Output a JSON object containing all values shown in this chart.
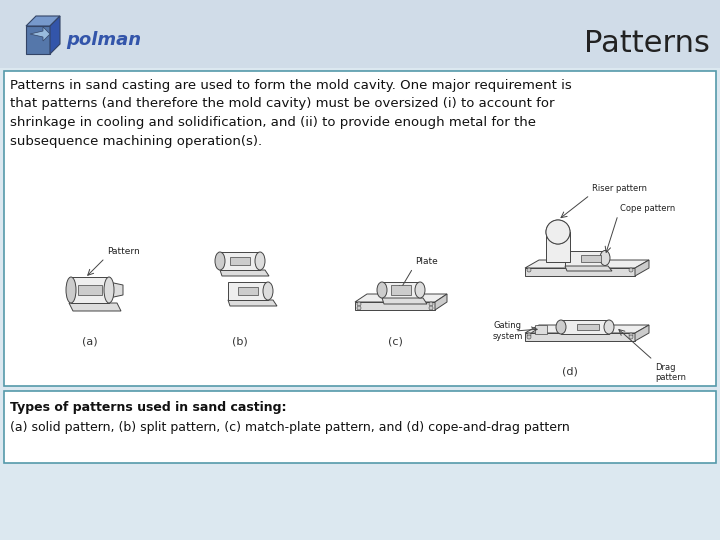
{
  "title": "Patterns",
  "header_bg_color": "#d0dce8",
  "slide_bg_color": "#dce8f0",
  "body_bg_color": "#ffffff",
  "title_color": "#222222",
  "title_fontsize": 22,
  "logo_text": "polman",
  "main_text": "Patterns in sand casting are used to form the mold cavity. One major requirement is\nthat patterns (and therefore the mold cavity) must be oversized (i) to account for\nshrinkage in cooling and solidification, and (ii) to provide enough metal for the\nsubsequence machining operation(s).",
  "caption_line1": "Types of patterns used in sand casting:",
  "caption_line2": "(a) solid pattern, (b) split pattern, (c) match-plate pattern, and (d) cope-and-drag pattern",
  "text_fontsize": 9.5,
  "caption_fontsize": 9,
  "box1_color": "#ffffff",
  "box2_color": "#ffffff",
  "border_color": "#5599aa",
  "text_color": "#111111",
  "diagram_line_color": "#444444",
  "diagram_fill_light": "#eeeeee",
  "diagram_fill_mid": "#dddddd",
  "diagram_fill_dark": "#cccccc"
}
